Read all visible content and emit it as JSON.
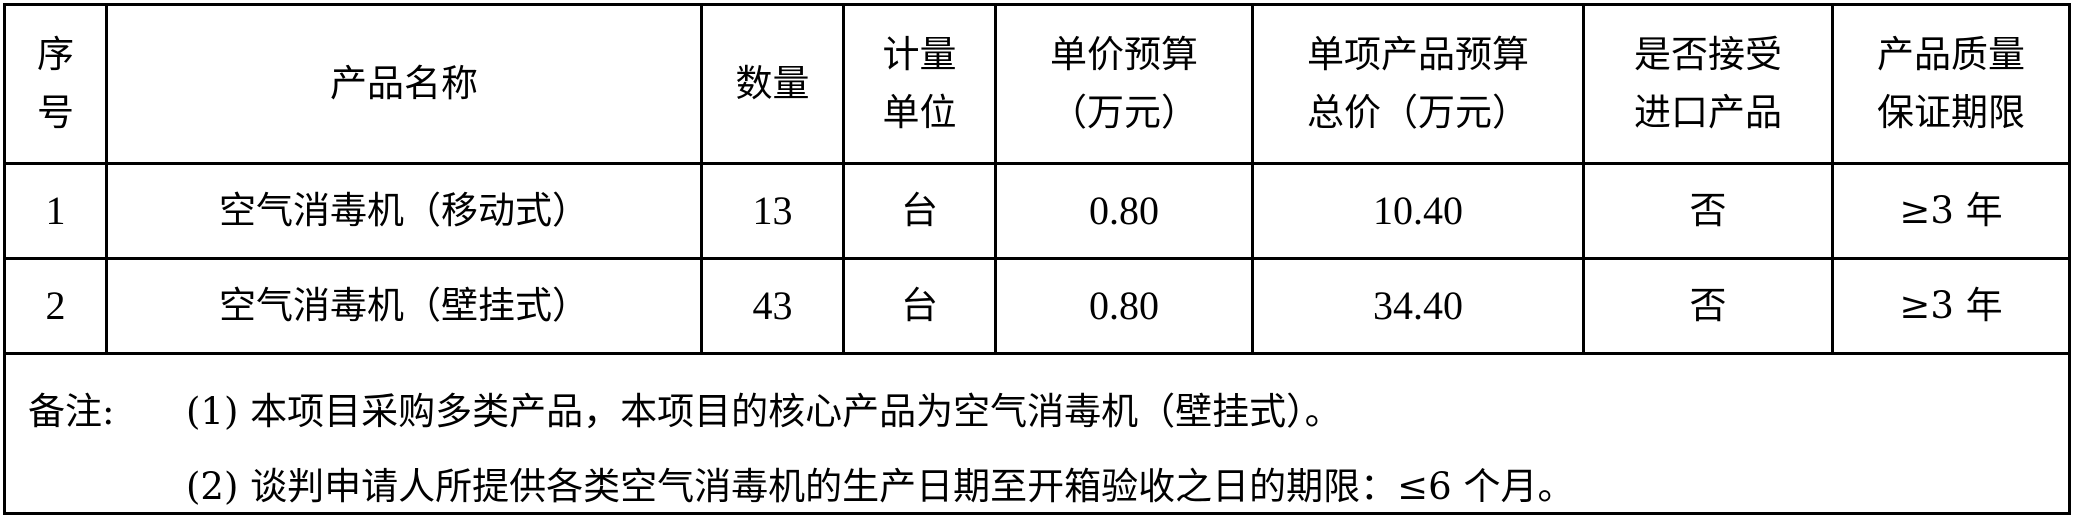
{
  "table": {
    "headers": [
      [
        "序",
        "号"
      ],
      [
        "产品名称"
      ],
      [
        "数量"
      ],
      [
        "计量",
        "单位"
      ],
      [
        "单价预算",
        "（万元）"
      ],
      [
        "单项产品预算",
        "总价（万元）"
      ],
      [
        "是否接受",
        "进口产品"
      ],
      [
        "产品质量",
        "保证期限"
      ]
    ],
    "rows": [
      {
        "index": "1",
        "name": "空气消毒机（移动式）",
        "quantity": "13",
        "unit": "台",
        "unit_price": "0.80",
        "total": "10.40",
        "imported": "否",
        "warranty": "≥3 年"
      },
      {
        "index": "2",
        "name": "空气消毒机（壁挂式）",
        "quantity": "43",
        "unit": "台",
        "unit_price": "0.80",
        "total": "34.40",
        "imported": "否",
        "warranty": "≥3 年"
      }
    ],
    "remarks": {
      "label": "备注:",
      "lines": [
        "(1) 本项目采购多类产品，本项目的核心产品为空气消毒机（壁挂式）。",
        "(2) 谈判申请人所提供各类空气消毒机的生产日期至开箱验收之日的期限：≤6 个月。"
      ]
    }
  }
}
